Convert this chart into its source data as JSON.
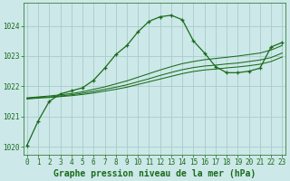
{
  "xlabel": "Graphe pression niveau de la mer (hPa)",
  "background_color": "#cce8e8",
  "grid_color": "#aacccc",
  "line_color": "#1a6b1a",
  "x": [
    0,
    1,
    2,
    3,
    4,
    5,
    6,
    7,
    8,
    9,
    10,
    11,
    12,
    13,
    14,
    15,
    16,
    17,
    18,
    19,
    20,
    21,
    22,
    23
  ],
  "series1": [
    1020.05,
    1020.85,
    1021.5,
    1021.75,
    1021.85,
    1021.95,
    1022.2,
    1022.6,
    1023.05,
    1023.35,
    1023.8,
    1024.15,
    1024.3,
    1024.35,
    1024.2,
    1023.5,
    1023.1,
    1022.65,
    1022.45,
    1022.45,
    1022.5,
    1022.6,
    1023.3,
    1023.45
  ],
  "series2": [
    1021.62,
    1021.65,
    1021.68,
    1021.72,
    1021.76,
    1021.82,
    1021.9,
    1021.98,
    1022.08,
    1022.18,
    1022.3,
    1022.42,
    1022.54,
    1022.65,
    1022.75,
    1022.82,
    1022.88,
    1022.92,
    1022.96,
    1023.0,
    1023.05,
    1023.1,
    1023.2,
    1023.35
  ],
  "series3": [
    1021.6,
    1021.63,
    1021.65,
    1021.68,
    1021.72,
    1021.77,
    1021.83,
    1021.9,
    1021.97,
    1022.05,
    1022.15,
    1022.25,
    1022.36,
    1022.46,
    1022.55,
    1022.62,
    1022.67,
    1022.7,
    1022.74,
    1022.77,
    1022.82,
    1022.87,
    1022.95,
    1023.1
  ],
  "series4": [
    1021.58,
    1021.61,
    1021.63,
    1021.66,
    1021.69,
    1021.73,
    1021.78,
    1021.84,
    1021.9,
    1021.97,
    1022.06,
    1022.15,
    1022.24,
    1022.33,
    1022.42,
    1022.49,
    1022.54,
    1022.57,
    1022.61,
    1022.64,
    1022.68,
    1022.73,
    1022.82,
    1022.97
  ],
  "ylim": [
    1019.75,
    1024.75
  ],
  "yticks": [
    1020,
    1021,
    1022,
    1023,
    1024
  ],
  "xticks": [
    0,
    1,
    2,
    3,
    4,
    5,
    6,
    7,
    8,
    9,
    10,
    11,
    12,
    13,
    14,
    15,
    16,
    17,
    18,
    19,
    20,
    21,
    22,
    23
  ],
  "title_fontsize": 7.0,
  "tick_fontsize": 5.5
}
